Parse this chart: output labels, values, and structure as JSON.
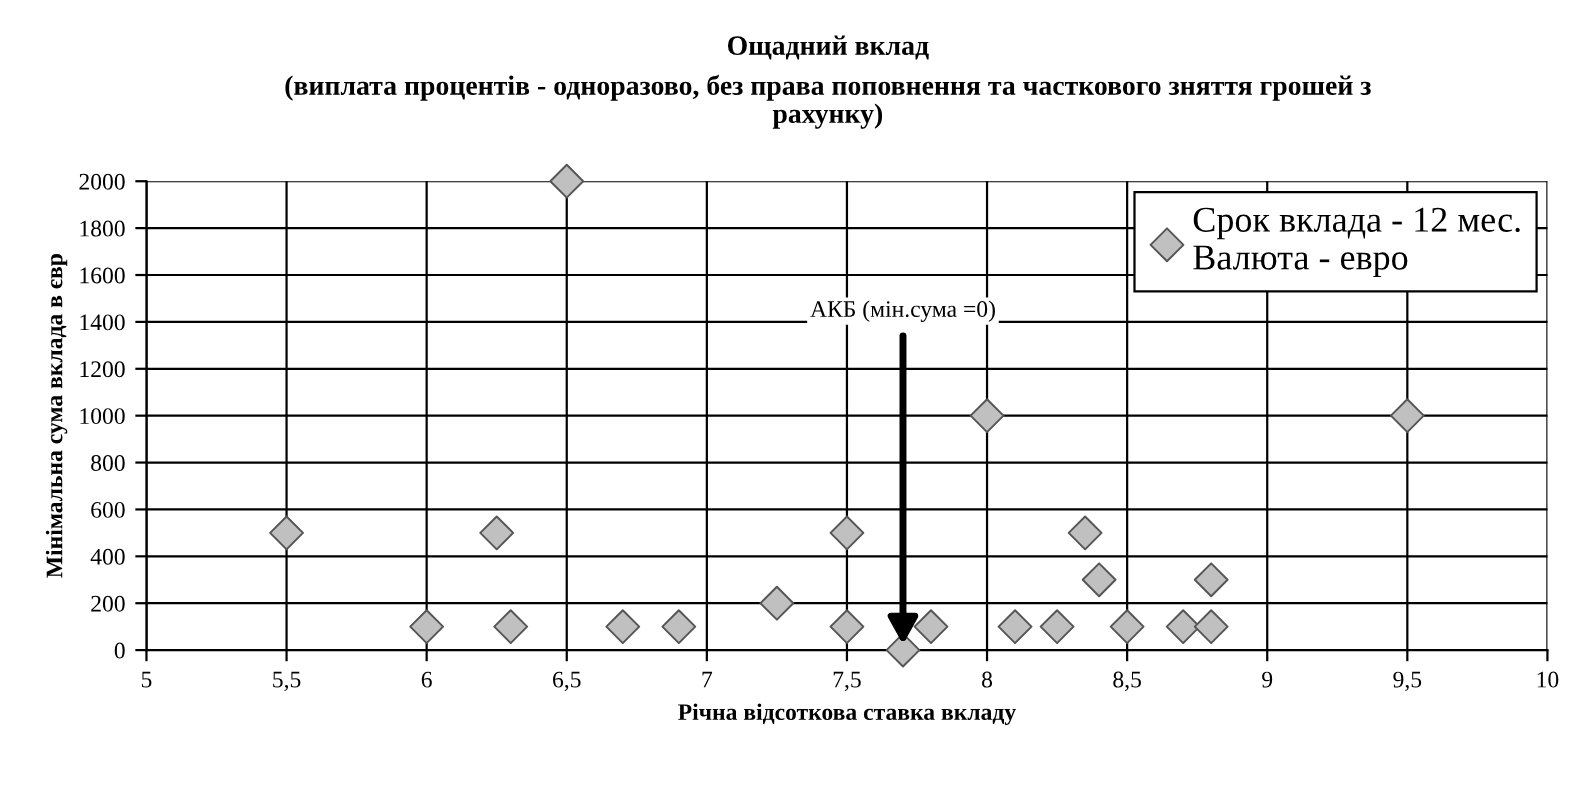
{
  "chart_data": {
    "type": "scatter",
    "title": "Ощадний вклад",
    "subtitle": "(виплата процентів - одноразово, без права поповнення та часткового зняття грошей з\nрахунку)",
    "xlabel": "Річна відсоткова ставка вкладу",
    "ylabel": "Мінімальна сума вклада в євр",
    "series": [
      {
        "name": "Срок вклада - 12 мес.\nВалюта - евро",
        "color": "#c0c0c0",
        "x": [
          5.5,
          6,
          6.25,
          6.3,
          6.5,
          6.7,
          6.9,
          7.25,
          7.5,
          7.5,
          7.7,
          7.8,
          8,
          8.1,
          8.25,
          8.35,
          8.4,
          8.5,
          8.7,
          8.8,
          8.8,
          9.5
        ],
        "values": [
          500,
          100,
          500,
          100,
          2000,
          100,
          100,
          200,
          500,
          100,
          0,
          100,
          1000,
          100,
          100,
          500,
          300,
          100,
          100,
          300,
          100,
          1000
        ]
      }
    ],
    "annotations": [
      {
        "text": "АКБ (мін.сума =0)",
        "x": 7.7,
        "y": 0
      }
    ],
    "xlim": [
      5,
      10
    ],
    "xticks": [
      5,
      {
        "value": 5.5,
        "label": "5,5"
      },
      6,
      {
        "value": 6.5,
        "label": "6,5"
      },
      7,
      {
        "value": 7.5,
        "label": "7,5"
      },
      8,
      {
        "value": 8.5,
        "label": "8,5"
      },
      9,
      {
        "value": 9.5,
        "label": "9,5"
      },
      10
    ],
    "ylim": [
      0,
      2000
    ],
    "yticks": [
      0,
      200,
      400,
      600,
      800,
      1000,
      1200,
      1400,
      1600,
      1800,
      2000
    ],
    "grid": true,
    "legend": "top right",
    "marker": "diamond"
  }
}
